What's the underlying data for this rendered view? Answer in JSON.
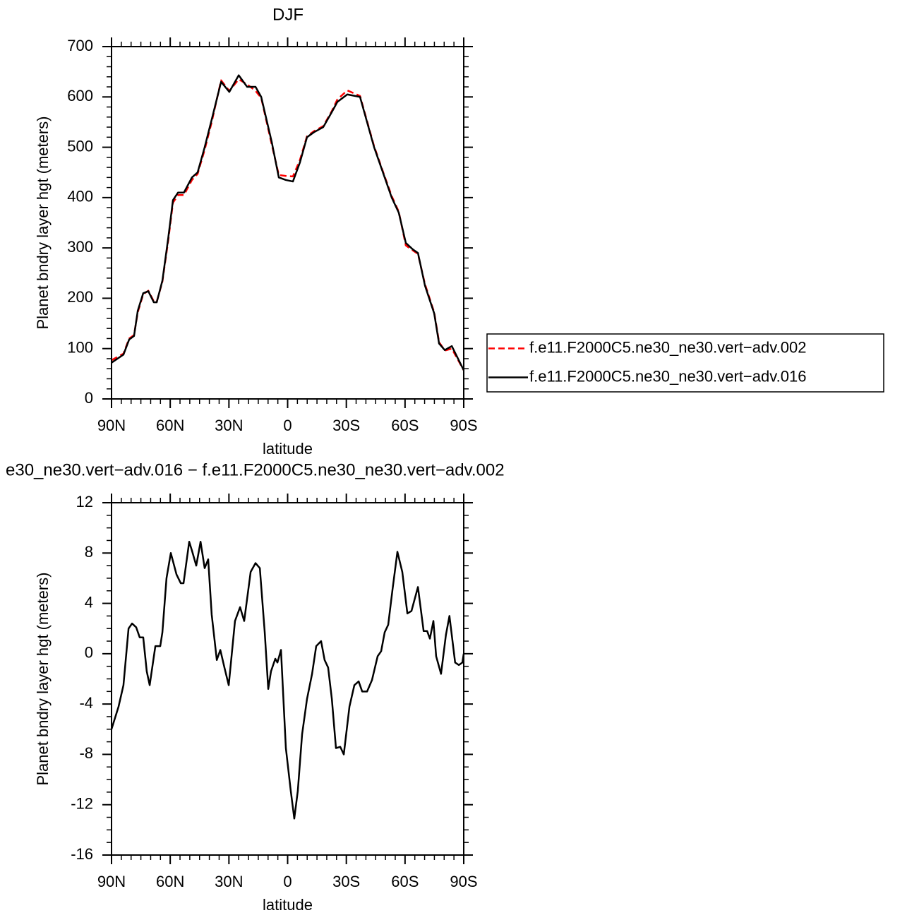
{
  "chart_data": [
    {
      "type": "line",
      "title": "DJF",
      "xlabel": "latitude",
      "ylabel": "Planet bndry layer hgt (meters)",
      "x": [
        90,
        83.9,
        81,
        78.5,
        76.6,
        73.8,
        71.2,
        68.4,
        66.9,
        64,
        61,
        58.6,
        56,
        53,
        48.9,
        46,
        42.4,
        38.8,
        34,
        29.8,
        25,
        20.7,
        16.4,
        13.5,
        8.1,
        4.5,
        0.9,
        -2.7,
        -6.3,
        -9.9,
        -13.5,
        -18.2,
        -22.6,
        -25.4,
        -30.5,
        -37,
        -44.2,
        -49.6,
        -53.2,
        -56.8,
        -60.4,
        -64,
        -66.6,
        -70.2,
        -74.9,
        -77.4,
        -80.3,
        -83.9,
        -90
      ],
      "series": [
        {
          "name": "f.e11.F2000C5.ne30_ne30.vert−adv.002",
          "color": "#ff0000",
          "dashed": true,
          "values": [
            77,
            90,
            120,
            127,
            172,
            208,
            215,
            194,
            193,
            233,
            315,
            390,
            405,
            405,
            435,
            447,
            495,
            550,
            633,
            612,
            635,
            625,
            612,
            598,
            505,
            445,
            443,
            442,
            475,
            522,
            532,
            542,
            572,
            595,
            613,
            602,
            502,
            442,
            403,
            372,
            305,
            295,
            288,
            228,
            172,
            113,
            96,
            100,
            57
          ]
        },
        {
          "name": "f.e11.F2000C5.ne30_ne30.vert−adv.016",
          "color": "#000000",
          "dashed": false,
          "values": [
            72,
            88,
            118,
            125,
            175,
            210,
            214,
            192,
            192,
            235,
            320,
            395,
            410,
            410,
            440,
            450,
            500,
            555,
            630,
            610,
            643,
            620,
            620,
            600,
            510,
            440,
            435,
            432,
            470,
            520,
            530,
            540,
            570,
            590,
            605,
            600,
            500,
            440,
            400,
            370,
            310,
            297,
            290,
            225,
            170,
            110,
            97,
            105,
            57
          ]
        }
      ],
      "xlim": [
        90,
        -90
      ],
      "xticks": [
        {
          "value": 90,
          "label": "90N"
        },
        {
          "value": 60,
          "label": "60N"
        },
        {
          "value": 30,
          "label": "30N"
        },
        0,
        {
          "value": -30,
          "label": "30S"
        },
        {
          "value": -60,
          "label": "60S"
        },
        {
          "value": -90,
          "label": "90S"
        }
      ],
      "ylim": [
        0,
        700
      ],
      "yticks": [
        0,
        100,
        200,
        300,
        400,
        500,
        600,
        700
      ],
      "legend": "right"
    },
    {
      "type": "line",
      "title": "e30_ne30.vert−adv.016 − f.e11.F2000C5.ne30_ne30.vert−adv.002",
      "xlabel": "latitude",
      "ylabel": "Planet bndry layer hgt (meters)",
      "x": [
        90,
        86.4,
        83.9,
        81.3,
        79.5,
        77.4,
        75.6,
        73.8,
        72,
        70.5,
        67.6,
        65.1,
        64,
        61.9,
        59.7,
        56.8,
        54.6,
        53.2,
        50.3,
        48.9,
        46.7,
        44.5,
        42.4,
        40.6,
        38.8,
        36.2,
        34.4,
        32.3,
        30.1,
        26.9,
        24.3,
        22.2,
        18.9,
        16.4,
        14.2,
        11.7,
        9.9,
        8.5,
        6.3,
        5.2,
        3.4,
        0.9,
        -1.6,
        -3.4,
        -5.2,
        -7.4,
        -9.9,
        -12.5,
        -14.6,
        -17.1,
        -18.9,
        -20.7,
        -22.6,
        -24.7,
        -26.9,
        -28.7,
        -31.6,
        -34.1,
        -36.3,
        -38.1,
        -40.6,
        -43.1,
        -46,
        -47.8,
        -49.6,
        -51.4,
        -53.6,
        -56.1,
        -58.6,
        -61.2,
        -63.3,
        -66.6,
        -69.5,
        -71.3,
        -72.7,
        -74.5,
        -75.9,
        -78.4,
        -80.9,
        -82.7,
        -85.6,
        -87.5,
        -89.3,
        -90
      ],
      "series": [
        {
          "color": "#000000",
          "dashed": false,
          "values": [
            -6,
            -4.2,
            -2.5,
            2,
            2.4,
            2.1,
            1.3,
            1.3,
            -1.4,
            -2.5,
            0.6,
            0.6,
            1.7,
            6,
            8,
            6.3,
            5.6,
            5.6,
            8.9,
            8.2,
            7,
            8.9,
            6.8,
            7.5,
            3.1,
            -0.5,
            0.3,
            -1.1,
            -2.5,
            2.6,
            3.7,
            2.6,
            6.5,
            7.2,
            6.8,
            1.7,
            -2.8,
            -1.4,
            -0.4,
            -0.7,
            0.3,
            -7.5,
            -10.9,
            -13.1,
            -10.9,
            -6.4,
            -3.6,
            -1.6,
            0.6,
            1,
            -0.5,
            -1.1,
            -3.6,
            -7.5,
            -7.4,
            -8,
            -4.2,
            -2.5,
            -2.2,
            -3,
            -3,
            -2.1,
            -0.2,
            0.2,
            1.7,
            2.3,
            5.1,
            8.1,
            6.5,
            3.2,
            3.4,
            5.3,
            1.8,
            1.8,
            1.2,
            2.6,
            -0.2,
            -1.6,
            1.5,
            3,
            -0.7,
            -0.9,
            -0.7,
            0
          ]
        }
      ],
      "xlim": [
        90,
        -90
      ],
      "xticks": [
        {
          "value": 90,
          "label": "90N"
        },
        {
          "value": 60,
          "label": "60N"
        },
        {
          "value": 30,
          "label": "30N"
        },
        0,
        {
          "value": -30,
          "label": "30S"
        },
        {
          "value": -60,
          "label": "60S"
        },
        {
          "value": -90,
          "label": "90S"
        }
      ],
      "ylim": [
        -16,
        12
      ],
      "yticks": [
        -16,
        -12,
        -8,
        -4,
        0,
        4,
        8,
        12
      ]
    }
  ]
}
